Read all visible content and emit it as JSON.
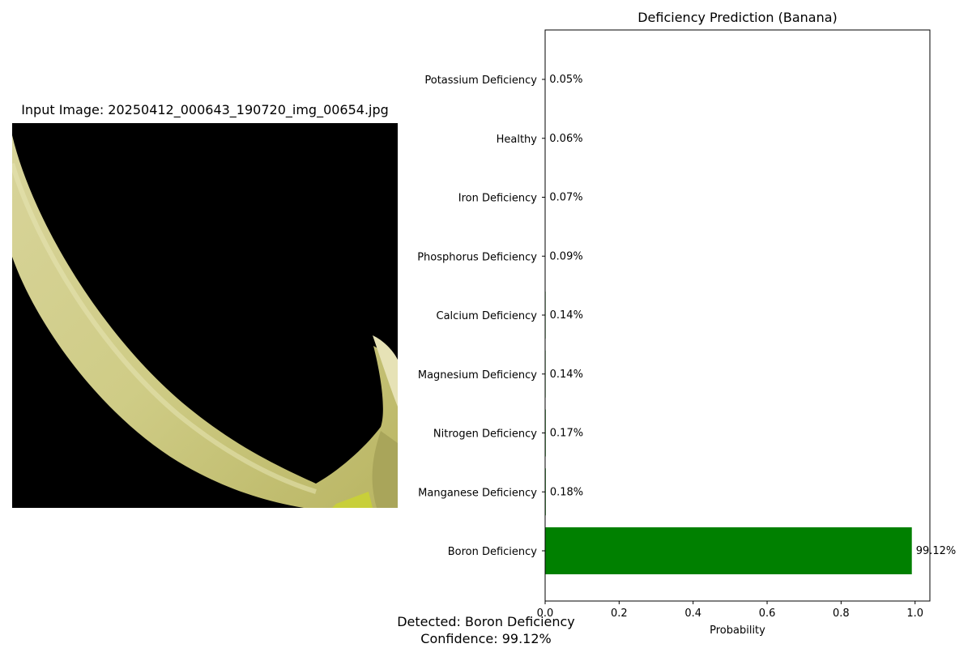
{
  "input_panel": {
    "title": "Input Image: 20250412_000643_190720_img_00654.jpg"
  },
  "chart_data": {
    "type": "bar",
    "orientation": "horizontal",
    "title": "Deficiency Prediction (Banana)",
    "xlabel": "Probability",
    "ylabel": "",
    "xlim": [
      0,
      1.04
    ],
    "xticks": [
      0.0,
      0.2,
      0.4,
      0.6,
      0.8,
      1.0
    ],
    "xtick_labels": [
      "0.0",
      "0.2",
      "0.4",
      "0.6",
      "0.8",
      "1.0"
    ],
    "categories": [
      "Potassium Deficiency",
      "Healthy",
      "Iron Deficiency",
      "Phosphorus Deficiency",
      "Calcium Deficiency",
      "Magnesium Deficiency",
      "Nitrogen Deficiency",
      "Manganese Deficiency",
      "Boron Deficiency"
    ],
    "values": [
      0.0005,
      0.0006,
      0.0007,
      0.0009,
      0.0014,
      0.0014,
      0.0017,
      0.0018,
      0.9912
    ],
    "value_labels": [
      "0.05%",
      "0.06%",
      "0.07%",
      "0.09%",
      "0.14%",
      "0.14%",
      "0.17%",
      "0.18%",
      "99.12%"
    ],
    "bar_color": "#008000",
    "grid": false
  },
  "detection": {
    "label_line": "Detected: Boron Deficiency",
    "confidence_line": "Confidence: 99.12%"
  }
}
